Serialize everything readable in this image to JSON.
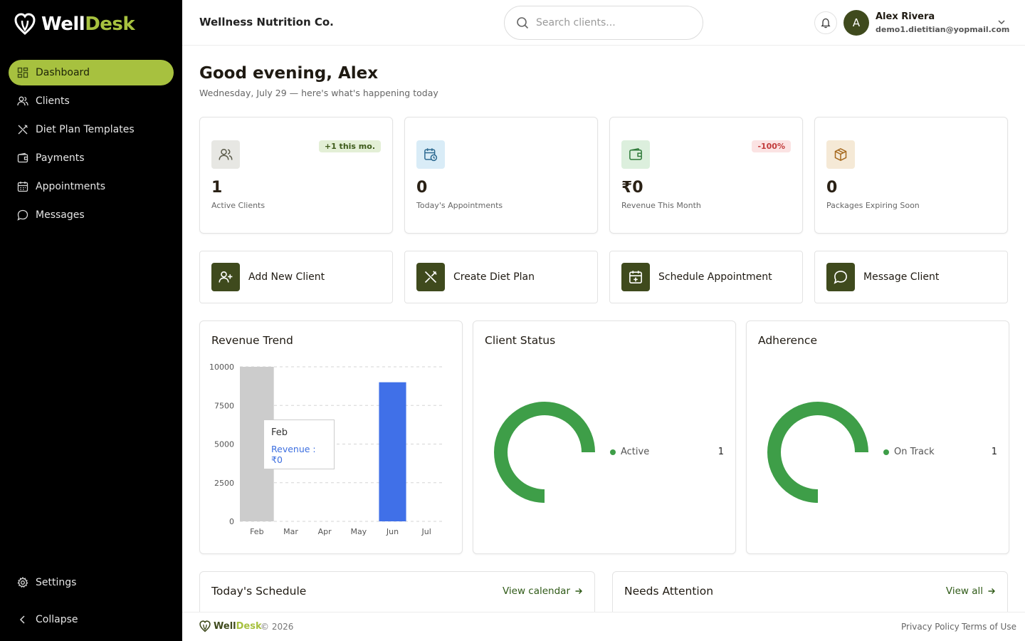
{
  "brand": {
    "part1": "Well",
    "part2": "Desk"
  },
  "sidebar": {
    "items": [
      {
        "label": "Dashboard",
        "icon": "dashboard-icon",
        "active": true
      },
      {
        "label": "Clients",
        "icon": "users-icon"
      },
      {
        "label": "Diet Plan Templates",
        "icon": "utensils-icon"
      },
      {
        "label": "Payments",
        "icon": "wallet-icon"
      },
      {
        "label": "Appointments",
        "icon": "calendar-icon"
      },
      {
        "label": "Messages",
        "icon": "message-icon"
      }
    ],
    "settings_label": "Settings",
    "collapse_label": "Collapse"
  },
  "header": {
    "org_name": "Wellness Nutrition Co.",
    "search_placeholder": "Search clients...",
    "avatar_initial": "A",
    "user_name": "Alex Rivera",
    "user_email": "demo1.dietitian@yopmail.com"
  },
  "greeting": {
    "title": "Good evening, Alex",
    "subtitle": "Wednesday, July 29 — here's what's happening today"
  },
  "stats": [
    {
      "value": "1",
      "label": "Active Clients",
      "badge": "+1 this mo.",
      "icon": "users-icon"
    },
    {
      "value": "0",
      "label": "Today's Appointments",
      "badge": "",
      "icon": "calendar-clock-icon"
    },
    {
      "value": "₹0",
      "label": "Revenue This Month",
      "badge": "-100%",
      "icon": "wallet-icon"
    },
    {
      "value": "0",
      "label": "Packages Expiring Soon",
      "badge": "",
      "icon": "package-icon"
    }
  ],
  "actions": [
    {
      "label": "Add New Client",
      "icon": "user-plus-icon"
    },
    {
      "label": "Create Diet Plan",
      "icon": "utensils-icon"
    },
    {
      "label": "Schedule Appointment",
      "icon": "calendar-plus-icon"
    },
    {
      "label": "Message Client",
      "icon": "message-icon"
    }
  ],
  "panels": {
    "revenue_title": "Revenue Trend",
    "status_title": "Client Status",
    "adherence_title": "Adherence"
  },
  "chart_data": [
    {
      "type": "bar",
      "title": "Revenue Trend",
      "categories": [
        "Feb",
        "Mar",
        "Apr",
        "May",
        "Jun",
        "Jul"
      ],
      "values": [
        0,
        0,
        0,
        0,
        9000,
        0
      ],
      "ylim": [
        0,
        10000
      ],
      "yticks": [
        "0",
        "2500",
        "5000",
        "7500",
        "10000"
      ],
      "grid": true,
      "hover_category": "Feb",
      "tooltip": {
        "title": "Feb",
        "label": "Revenue",
        "value": "₹0"
      },
      "bar_color": "#4070e8",
      "hover_color": "#cccccc"
    },
    {
      "type": "pie",
      "title": "Client Status",
      "categories": [
        "Active"
      ],
      "values": [
        1
      ],
      "color": "#3e9e48"
    },
    {
      "type": "pie",
      "title": "Adherence",
      "categories": [
        "On Track"
      ],
      "values": [
        1
      ],
      "color": "#3e9e48"
    }
  ],
  "legends": {
    "status": {
      "label": "Active",
      "count": "1"
    },
    "adherence": {
      "label": "On Track",
      "count": "1"
    }
  },
  "bottom": {
    "schedule_title": "Today's Schedule",
    "schedule_link": "View calendar",
    "attention_title": "Needs Attention",
    "attention_link": "View all"
  },
  "footer": {
    "copyright": "© 2026",
    "privacy": "Privacy Policy",
    "terms": "Terms of Use"
  },
  "colors": {
    "accent": "#a7c13f",
    "dark_olive": "#3f4a1d",
    "chart_green": "#3e9e48",
    "bar_blue": "#4070e8"
  }
}
